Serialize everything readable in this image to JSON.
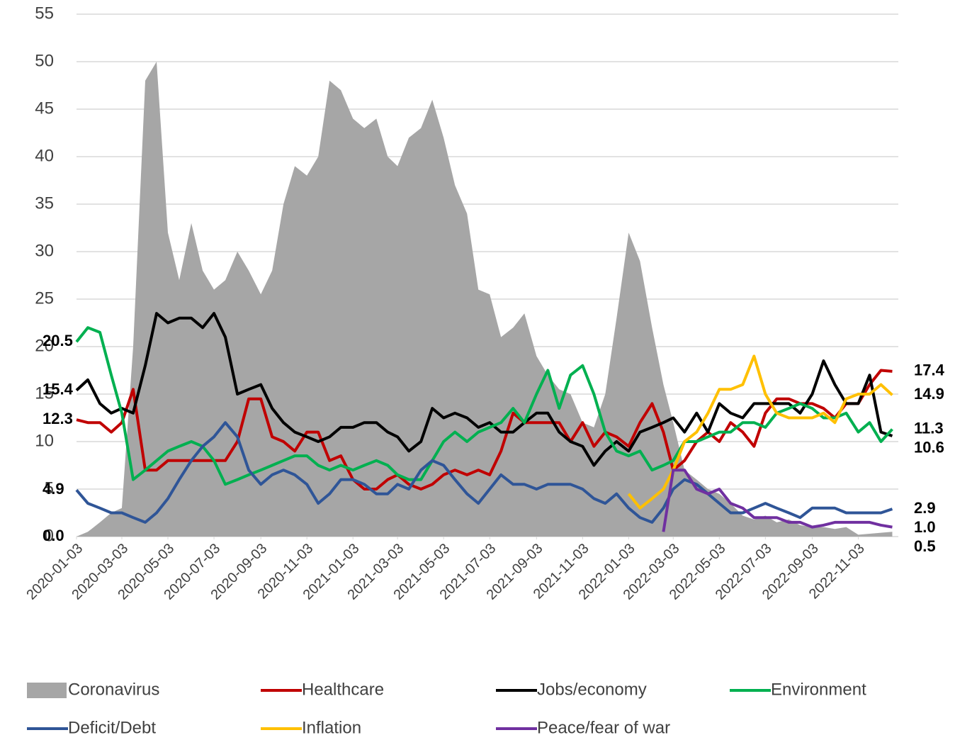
{
  "chart_data": {
    "type": "line",
    "x": [
      "2020-01-03",
      "2020-01-18",
      "2020-02-03",
      "2020-02-18",
      "2020-03-03",
      "2020-03-18",
      "2020-04-03",
      "2020-04-18",
      "2020-05-03",
      "2020-05-18",
      "2020-06-03",
      "2020-06-18",
      "2020-07-03",
      "2020-07-18",
      "2020-08-03",
      "2020-08-18",
      "2020-09-03",
      "2020-09-18",
      "2020-10-03",
      "2020-10-18",
      "2020-11-03",
      "2020-11-18",
      "2020-12-03",
      "2020-12-18",
      "2021-01-03",
      "2021-01-18",
      "2021-02-03",
      "2021-02-18",
      "2021-03-03",
      "2021-03-18",
      "2021-04-03",
      "2021-04-18",
      "2021-05-03",
      "2021-05-18",
      "2021-06-03",
      "2021-06-18",
      "2021-07-03",
      "2021-07-18",
      "2021-08-03",
      "2021-08-18",
      "2021-09-03",
      "2021-09-18",
      "2021-10-03",
      "2021-10-18",
      "2021-11-03",
      "2021-11-18",
      "2021-12-03",
      "2021-12-18",
      "2022-01-03",
      "2022-01-18",
      "2022-02-03",
      "2022-02-18",
      "2022-03-03",
      "2022-03-18",
      "2022-04-03",
      "2022-04-18",
      "2022-05-03",
      "2022-05-18",
      "2022-06-03",
      "2022-06-18",
      "2022-07-03",
      "2022-07-18",
      "2022-08-03",
      "2022-08-18",
      "2022-09-03",
      "2022-09-18",
      "2022-10-03",
      "2022-10-18",
      "2022-11-03",
      "2022-11-18",
      "2022-12-03",
      "2022-12-18"
    ],
    "xlim": [
      "2020-01-03",
      "2022-12-26"
    ],
    "xticks": [
      "2020-01-03",
      "2020-03-03",
      "2020-05-03",
      "2020-07-03",
      "2020-09-03",
      "2020-11-03",
      "2021-01-03",
      "2021-03-03",
      "2021-05-03",
      "2021-07-03",
      "2021-09-03",
      "2021-11-03",
      "2022-01-03",
      "2022-03-03",
      "2022-05-03",
      "2022-07-03",
      "2022-09-03",
      "2022-11-03"
    ],
    "ylim": [
      0,
      55
    ],
    "yticks": [
      0,
      5,
      10,
      15,
      20,
      25,
      30,
      35,
      40,
      45,
      50,
      55
    ],
    "grid": true,
    "series": [
      {
        "name": "Coronavirus",
        "type": "area",
        "color": "#a6a6a6",
        "values": [
          0,
          0.5,
          1.5,
          2.5,
          3,
          20,
          48,
          50,
          32,
          27,
          33,
          28,
          26,
          27,
          30,
          28,
          25.5,
          28,
          35,
          39,
          38,
          40,
          48,
          47,
          44,
          43,
          44,
          40,
          39,
          42,
          43,
          46,
          42,
          37,
          34,
          26,
          25.5,
          21,
          22,
          23.5,
          19,
          17,
          15.5,
          15,
          12,
          11.5,
          15,
          23,
          32,
          29,
          22,
          16,
          12,
          7,
          6,
          5,
          4.5,
          3.5,
          2.2,
          1.8,
          2.2,
          1.5,
          1.8,
          1.2,
          1,
          1,
          0.8,
          1,
          0.2,
          0.3,
          0.4,
          0.5
        ],
        "value_labels": [
          "0.0",
          null,
          null,
          null,
          null,
          null,
          null,
          null,
          null,
          null,
          null,
          null,
          null,
          null,
          null,
          null,
          null,
          null,
          null,
          null,
          null,
          null,
          null,
          null,
          null,
          null,
          null,
          null,
          null,
          null,
          null,
          null,
          null,
          null,
          null,
          null,
          null,
          null,
          null,
          null,
          null,
          null,
          null,
          null,
          null,
          null,
          null,
          null,
          null,
          null,
          null,
          null,
          null,
          null,
          null,
          null,
          null,
          null,
          null,
          null,
          null,
          null,
          null,
          null,
          null,
          null,
          null,
          null,
          null,
          null,
          null,
          "0.5"
        ]
      },
      {
        "name": "Healthcare",
        "type": "line",
        "color": "#c00000",
        "values": [
          12.3,
          12,
          12,
          11,
          12,
          15.5,
          7,
          7,
          8,
          8,
          8,
          8,
          8,
          8,
          10,
          14.5,
          14.5,
          10.5,
          10,
          9,
          11,
          11,
          8,
          8.5,
          6,
          5,
          5,
          6,
          6.5,
          5.5,
          5,
          5.5,
          6.5,
          7,
          6.5,
          7,
          6.5,
          9,
          13,
          12,
          12,
          12,
          12,
          10,
          12,
          9.5,
          11,
          10.5,
          9.5,
          12,
          14,
          11,
          7,
          8,
          10,
          11,
          10,
          12,
          11,
          9.5,
          13,
          14.5,
          14.5,
          14,
          14,
          13.5,
          12.5,
          14,
          14,
          16,
          17.5,
          17.4
        ],
        "value_labels": [
          "12.3",
          null,
          null,
          null,
          null,
          null,
          null,
          null,
          null,
          null,
          null,
          null,
          null,
          null,
          null,
          null,
          null,
          null,
          null,
          null,
          null,
          null,
          null,
          null,
          null,
          null,
          null,
          null,
          null,
          null,
          null,
          null,
          null,
          null,
          null,
          null,
          null,
          null,
          null,
          null,
          null,
          null,
          null,
          null,
          null,
          null,
          null,
          null,
          null,
          null,
          null,
          null,
          null,
          null,
          null,
          null,
          null,
          null,
          null,
          null,
          null,
          null,
          null,
          null,
          null,
          null,
          null,
          null,
          null,
          null,
          null,
          "17.4"
        ]
      },
      {
        "name": "Jobs/economy",
        "type": "line",
        "color": "#000000",
        "values": [
          15.4,
          16.5,
          14,
          13,
          13.5,
          13,
          18,
          23.5,
          22.5,
          23,
          23,
          22,
          23.5,
          21,
          15,
          15.5,
          16,
          13.5,
          12,
          11,
          10.5,
          10,
          10.5,
          11.5,
          11.5,
          12,
          12,
          11,
          10.5,
          9,
          10,
          13.5,
          12.5,
          13,
          12.5,
          11.5,
          12,
          11,
          11,
          12,
          13,
          13,
          11,
          10,
          9.5,
          7.5,
          9,
          10,
          9,
          11,
          11.5,
          12,
          12.5,
          11,
          13,
          11,
          14,
          13,
          12.5,
          14,
          14,
          14,
          14,
          13,
          15,
          18.5,
          16,
          14,
          14,
          17,
          11,
          10.6
        ],
        "value_labels": [
          "15.4",
          null,
          null,
          null,
          null,
          null,
          null,
          null,
          null,
          null,
          null,
          null,
          null,
          null,
          null,
          null,
          null,
          null,
          null,
          null,
          null,
          null,
          null,
          null,
          null,
          null,
          null,
          null,
          null,
          null,
          null,
          null,
          null,
          null,
          null,
          null,
          null,
          null,
          null,
          null,
          null,
          null,
          null,
          null,
          null,
          null,
          null,
          null,
          null,
          null,
          null,
          null,
          null,
          null,
          null,
          null,
          null,
          null,
          null,
          null,
          null,
          null,
          null,
          null,
          null,
          null,
          null,
          null,
          null,
          null,
          null,
          "10.6"
        ]
      },
      {
        "name": "Environment",
        "type": "line",
        "color": "#00b050",
        "values": [
          20.5,
          22,
          21.5,
          17,
          13,
          6,
          7,
          8,
          9,
          9.5,
          10,
          9.5,
          8,
          5.5,
          6,
          6.5,
          7,
          7.5,
          8,
          8.5,
          8.5,
          7.5,
          7,
          7.5,
          7,
          7.5,
          8,
          7.5,
          6.5,
          6,
          6,
          8,
          10,
          11,
          10,
          11,
          11.5,
          12,
          13.5,
          12,
          15,
          17.5,
          13.5,
          17,
          18,
          15,
          11,
          9,
          8.5,
          9,
          7,
          7.5,
          8,
          10,
          10,
          10.5,
          11,
          11,
          12,
          12,
          11.5,
          13,
          13.5,
          14,
          13.5,
          12.5,
          12.5,
          13,
          11,
          12,
          10,
          11.3
        ],
        "value_labels": [
          "20.5",
          null,
          null,
          null,
          null,
          null,
          null,
          null,
          null,
          null,
          null,
          null,
          null,
          null,
          null,
          null,
          null,
          null,
          null,
          null,
          null,
          null,
          null,
          null,
          null,
          null,
          null,
          null,
          null,
          null,
          null,
          null,
          null,
          null,
          null,
          null,
          null,
          null,
          null,
          null,
          null,
          null,
          null,
          null,
          null,
          null,
          null,
          null,
          null,
          null,
          null,
          null,
          null,
          null,
          null,
          null,
          null,
          null,
          null,
          null,
          null,
          null,
          null,
          null,
          null,
          null,
          null,
          null,
          null,
          null,
          null,
          "11.3"
        ]
      },
      {
        "name": "Deficit/Debt",
        "type": "line",
        "color": "#2f5597",
        "values": [
          4.9,
          3.5,
          3,
          2.5,
          2.5,
          2,
          1.5,
          2.5,
          4,
          6,
          8,
          9.5,
          10.5,
          12,
          10.5,
          7,
          5.5,
          6.5,
          7,
          6.5,
          5.5,
          3.5,
          4.5,
          6,
          6,
          5.5,
          4.5,
          4.5,
          5.5,
          5,
          7,
          8,
          7.5,
          6,
          4.5,
          3.5,
          5,
          6.5,
          5.5,
          5.5,
          5,
          5.5,
          5.5,
          5.5,
          5,
          4,
          3.5,
          4.5,
          3,
          2,
          1.5,
          3,
          5,
          6,
          5.5,
          4.5,
          3.5,
          2.5,
          2.5,
          3,
          3.5,
          3,
          2.5,
          2,
          3,
          3,
          3,
          2.5,
          2.5,
          2.5,
          2.5,
          2.9
        ],
        "value_labels": [
          "4.9",
          null,
          null,
          null,
          null,
          null,
          null,
          null,
          null,
          null,
          null,
          null,
          null,
          null,
          null,
          null,
          null,
          null,
          null,
          null,
          null,
          null,
          null,
          null,
          null,
          null,
          null,
          null,
          null,
          null,
          null,
          null,
          null,
          null,
          null,
          null,
          null,
          null,
          null,
          null,
          null,
          null,
          null,
          null,
          null,
          null,
          null,
          null,
          null,
          null,
          null,
          null,
          null,
          null,
          null,
          null,
          null,
          null,
          null,
          null,
          null,
          null,
          null,
          null,
          null,
          null,
          null,
          null,
          null,
          null,
          null,
          "2.9"
        ]
      },
      {
        "name": "Inflation",
        "type": "line",
        "color": "#ffc000",
        "values": [
          null,
          null,
          null,
          null,
          null,
          null,
          null,
          null,
          null,
          null,
          null,
          null,
          null,
          null,
          null,
          null,
          null,
          null,
          null,
          null,
          null,
          null,
          null,
          null,
          null,
          null,
          null,
          null,
          null,
          null,
          null,
          null,
          null,
          null,
          null,
          null,
          null,
          null,
          null,
          null,
          null,
          null,
          null,
          null,
          null,
          null,
          null,
          null,
          4.5,
          3,
          4,
          5,
          7,
          10,
          11,
          13,
          15.5,
          15.5,
          16,
          19,
          15,
          13,
          12.5,
          12.5,
          12.5,
          13,
          12,
          14.5,
          15,
          15,
          16,
          14.9
        ],
        "value_labels": [
          null,
          null,
          null,
          null,
          null,
          null,
          null,
          null,
          null,
          null,
          null,
          null,
          null,
          null,
          null,
          null,
          null,
          null,
          null,
          null,
          null,
          null,
          null,
          null,
          null,
          null,
          null,
          null,
          null,
          null,
          null,
          null,
          null,
          null,
          null,
          null,
          null,
          null,
          null,
          null,
          null,
          null,
          null,
          null,
          null,
          null,
          null,
          null,
          null,
          null,
          null,
          null,
          null,
          null,
          null,
          null,
          null,
          null,
          null,
          null,
          null,
          null,
          null,
          null,
          null,
          null,
          null,
          null,
          null,
          null,
          null,
          "14.9"
        ]
      },
      {
        "name": "Peace/fear of war",
        "type": "line",
        "color": "#7030a0",
        "values": [
          null,
          null,
          null,
          null,
          null,
          null,
          null,
          null,
          null,
          null,
          null,
          null,
          null,
          null,
          null,
          null,
          null,
          null,
          null,
          null,
          null,
          null,
          null,
          null,
          null,
          null,
          null,
          null,
          null,
          null,
          null,
          null,
          null,
          null,
          null,
          null,
          null,
          null,
          null,
          null,
          null,
          null,
          null,
          null,
          null,
          null,
          null,
          null,
          null,
          null,
          null,
          0.5,
          7,
          7,
          5,
          4.5,
          5,
          3.5,
          3,
          2,
          2,
          2,
          1.5,
          1.5,
          1,
          1.2,
          1.5,
          1.5,
          1.5,
          1.5,
          1.2,
          1.0
        ],
        "value_labels": [
          null,
          null,
          null,
          null,
          null,
          null,
          null,
          null,
          null,
          null,
          null,
          null,
          null,
          null,
          null,
          null,
          null,
          null,
          null,
          null,
          null,
          null,
          null,
          null,
          null,
          null,
          null,
          null,
          null,
          null,
          null,
          null,
          null,
          null,
          null,
          null,
          null,
          null,
          null,
          null,
          null,
          null,
          null,
          null,
          null,
          null,
          null,
          null,
          null,
          null,
          null,
          null,
          null,
          null,
          null,
          null,
          null,
          null,
          null,
          null,
          null,
          null,
          null,
          null,
          null,
          null,
          null,
          null,
          null,
          null,
          null,
          "1.0"
        ]
      }
    ]
  }
}
